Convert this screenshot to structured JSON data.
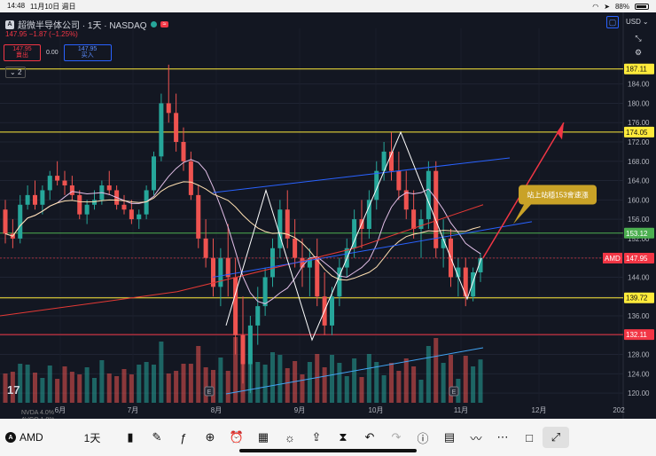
{
  "status_bar": {
    "time": "14:48",
    "date": "11月10日 週日",
    "battery": "88%",
    "battery_level": 0.88
  },
  "header": {
    "title": "超微半导体公司 · 1天 · NASDAQ",
    "badge": "≈",
    "price_line": "147.95 −1.87 (−1.25%)",
    "bid_price": "147.95",
    "bid_label": "賣出",
    "spread": "0.00",
    "ask_price": "147.95",
    "ask_label": "买入",
    "collapse_label": "2",
    "currency": "USD"
  },
  "bottom_nav": {
    "symbol": "AMD",
    "interval": "1天"
  },
  "chart_data": {
    "type": "candlestick",
    "symbol": "AMD",
    "x_ticks": [
      "6月",
      "7月",
      "8月",
      "9月",
      "10月",
      "11月",
      "12月",
      "202"
    ],
    "y_ticks": [
      120,
      124,
      128,
      132,
      136,
      140,
      144,
      148,
      152,
      156,
      160,
      164,
      168,
      172,
      176,
      180,
      184
    ],
    "ylim": [
      118,
      190
    ],
    "price_labels": [
      {
        "value": 187.11,
        "label": "187.11",
        "color": "#ffeb3b"
      },
      {
        "value": 174.05,
        "label": "174.05",
        "color": "#ffeb3b"
      },
      {
        "value": 153.12,
        "label": "153.12",
        "color": "#4caf50"
      },
      {
        "value": 147.95,
        "label": "147.95",
        "color": "#f23645",
        "tag": "AMD"
      },
      {
        "value": 139.72,
        "label": "139.72",
        "color": "#ffeb3b"
      },
      {
        "value": 132.11,
        "label": "132.11",
        "color": "#f23645"
      }
    ],
    "annotation": "站上站穩153會速漲",
    "candles": [
      [
        158,
        160,
        151,
        153
      ],
      [
        153,
        156,
        150,
        152
      ],
      [
        152,
        161,
        151,
        159
      ],
      [
        159,
        163,
        158,
        161
      ],
      [
        161,
        164,
        158,
        159
      ],
      [
        159,
        163,
        157,
        162
      ],
      [
        162,
        166,
        160,
        165
      ],
      [
        165,
        168,
        163,
        164
      ],
      [
        164,
        166,
        161,
        163
      ],
      [
        163,
        165,
        160,
        161
      ],
      [
        161,
        162,
        156,
        157
      ],
      [
        157,
        160,
        155,
        159
      ],
      [
        159,
        162,
        158,
        160
      ],
      [
        160,
        164,
        159,
        163
      ],
      [
        163,
        166,
        161,
        162
      ],
      [
        162,
        163,
        158,
        159
      ],
      [
        159,
        161,
        157,
        158
      ],
      [
        158,
        160,
        155,
        156
      ],
      [
        156,
        158,
        154,
        157
      ],
      [
        157,
        163,
        156,
        162
      ],
      [
        162,
        170,
        161,
        169
      ],
      [
        169,
        182,
        168,
        180
      ],
      [
        180,
        188,
        176,
        178
      ],
      [
        178,
        182,
        170,
        172
      ],
      [
        172,
        175,
        166,
        168
      ],
      [
        168,
        170,
        160,
        161
      ],
      [
        161,
        163,
        150,
        152
      ],
      [
        152,
        156,
        146,
        148
      ],
      [
        148,
        152,
        140,
        142
      ],
      [
        142,
        150,
        138,
        148
      ],
      [
        148,
        155,
        140,
        144
      ],
      [
        144,
        148,
        128,
        132
      ],
      [
        132,
        140,
        122,
        126
      ],
      [
        126,
        136,
        120,
        134
      ],
      [
        134,
        142,
        130,
        138
      ],
      [
        138,
        146,
        136,
        144
      ],
      [
        144,
        152,
        142,
        150
      ],
      [
        150,
        160,
        148,
        158
      ],
      [
        158,
        162,
        150,
        152
      ],
      [
        152,
        156,
        146,
        148
      ],
      [
        148,
        152,
        142,
        146
      ],
      [
        146,
        150,
        140,
        148
      ],
      [
        148,
        152,
        138,
        140
      ],
      [
        140,
        145,
        132,
        134
      ],
      [
        134,
        142,
        132,
        140
      ],
      [
        140,
        148,
        138,
        146
      ],
      [
        146,
        152,
        144,
        150
      ],
      [
        150,
        158,
        148,
        156
      ],
      [
        156,
        160,
        150,
        154
      ],
      [
        154,
        162,
        152,
        160
      ],
      [
        160,
        168,
        158,
        166
      ],
      [
        166,
        172,
        164,
        170
      ],
      [
        170,
        174,
        164,
        166
      ],
      [
        166,
        170,
        160,
        162
      ],
      [
        162,
        166,
        156,
        158
      ],
      [
        158,
        162,
        152,
        154
      ],
      [
        154,
        158,
        148,
        156
      ],
      [
        156,
        168,
        154,
        166
      ],
      [
        166,
        168,
        148,
        150
      ],
      [
        150,
        156,
        146,
        152
      ],
      [
        152,
        154,
        142,
        144
      ],
      [
        144,
        148,
        140,
        146
      ],
      [
        146,
        148,
        138,
        140
      ],
      [
        140,
        146,
        139,
        145
      ],
      [
        145,
        149,
        143,
        147.95
      ]
    ],
    "series": [
      {
        "name": "MA20",
        "color": "#e1bee7"
      },
      {
        "name": "MA50",
        "color": "#ffe0b2"
      },
      {
        "name": "MA200",
        "color": "#e53935"
      }
    ]
  }
}
